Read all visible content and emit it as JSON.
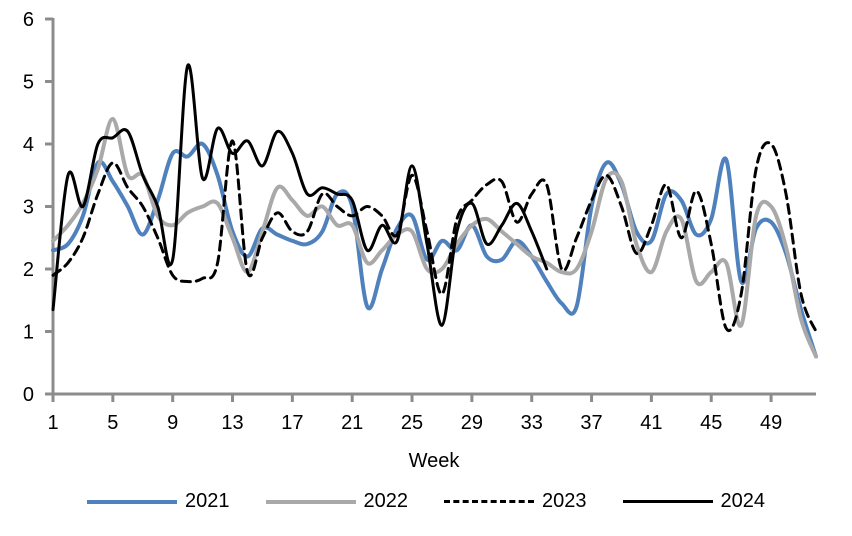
{
  "chart_data": {
    "type": "line",
    "title": "",
    "xlabel": "Week",
    "ylabel": "",
    "xlim": [
      1,
      52
    ],
    "ylim": [
      0,
      6
    ],
    "grid": false,
    "legend_position": "bottom",
    "axis_color": "#8C8C8C",
    "tick_label_color": "#000000",
    "x_ticks": [
      1,
      5,
      9,
      13,
      17,
      21,
      25,
      29,
      33,
      37,
      41,
      45,
      49
    ],
    "y_ticks": [
      0,
      1,
      2,
      3,
      4,
      5,
      6
    ],
    "x": [
      1,
      2,
      3,
      4,
      5,
      6,
      7,
      8,
      9,
      10,
      11,
      12,
      13,
      14,
      15,
      16,
      17,
      18,
      19,
      20,
      21,
      22,
      23,
      24,
      25,
      26,
      27,
      28,
      29,
      30,
      31,
      32,
      33,
      34,
      35,
      36,
      37,
      38,
      39,
      40,
      41,
      42,
      43,
      44,
      45,
      46,
      47,
      48,
      49,
      50,
      51,
      52
    ],
    "series": [
      {
        "name": "2021",
        "color": "#4F81BD",
        "style": "solid",
        "width": 4,
        "values": [
          2.3,
          2.4,
          2.85,
          3.7,
          3.4,
          3.0,
          2.55,
          3.1,
          3.85,
          3.8,
          4.0,
          3.5,
          2.6,
          2.2,
          2.65,
          2.55,
          2.45,
          2.4,
          2.6,
          3.2,
          3.0,
          1.4,
          2.0,
          2.65,
          2.85,
          2.15,
          2.45,
          2.3,
          2.7,
          2.2,
          2.15,
          2.45,
          2.2,
          1.8,
          1.45,
          1.4,
          3.0,
          3.7,
          3.35,
          2.6,
          2.45,
          3.2,
          3.1,
          2.55,
          2.8,
          3.75,
          1.8,
          2.65,
          2.75,
          2.25,
          1.35,
          0.6
        ]
      },
      {
        "name": "2022",
        "color": "#A9A9A9",
        "style": "solid",
        "width": 4,
        "values": [
          2.45,
          2.7,
          3.05,
          3.6,
          4.4,
          3.5,
          3.5,
          2.85,
          2.7,
          2.9,
          3.0,
          3.05,
          2.5,
          1.95,
          2.6,
          3.3,
          3.1,
          2.85,
          3.0,
          2.7,
          2.7,
          2.1,
          2.3,
          2.55,
          2.6,
          2.0,
          2.0,
          2.4,
          2.7,
          2.8,
          2.6,
          2.4,
          2.2,
          2.1,
          1.95,
          2.0,
          2.6,
          3.45,
          3.4,
          2.4,
          1.95,
          2.6,
          2.8,
          1.8,
          1.95,
          2.1,
          1.1,
          2.85,
          3.0,
          2.35,
          1.2,
          0.6
        ]
      },
      {
        "name": "2023",
        "color": "#000000",
        "style": "dashed",
        "width": 3,
        "values": [
          1.9,
          2.1,
          2.5,
          3.2,
          3.7,
          3.3,
          3.0,
          2.5,
          1.9,
          1.8,
          1.85,
          2.1,
          4.05,
          1.95,
          2.5,
          2.9,
          2.6,
          2.6,
          3.2,
          3.0,
          2.85,
          3.0,
          2.85,
          2.55,
          3.5,
          2.6,
          1.6,
          2.8,
          3.1,
          3.35,
          3.4,
          2.75,
          3.2,
          3.35,
          2.0,
          2.5,
          3.1,
          3.5,
          3.0,
          2.25,
          2.7,
          3.35,
          2.5,
          3.25,
          2.4,
          1.05,
          1.6,
          3.6,
          4.0,
          3.2,
          1.6,
          1.0
        ]
      },
      {
        "name": "2024",
        "color": "#000000",
        "style": "solid",
        "width": 3,
        "values": [
          1.35,
          3.5,
          3.0,
          4.0,
          4.1,
          4.2,
          3.5,
          3.0,
          2.15,
          5.25,
          3.45,
          4.25,
          3.85,
          4.05,
          3.65,
          4.2,
          3.85,
          3.2,
          3.3,
          3.2,
          3.1,
          2.3,
          2.7,
          2.45,
          3.65,
          2.4,
          1.1,
          2.6,
          3.05,
          2.4,
          2.7,
          3.05,
          2.6,
          2.0,
          null,
          null,
          null,
          null,
          null,
          null,
          null,
          null,
          null,
          null,
          null,
          null,
          null,
          null,
          null,
          null,
          null,
          null
        ]
      }
    ]
  }
}
